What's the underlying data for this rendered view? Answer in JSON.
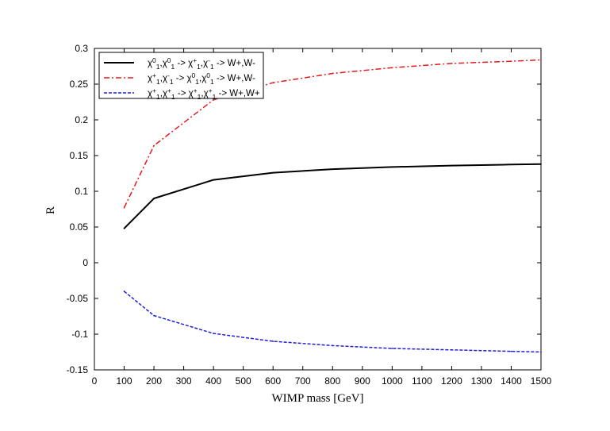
{
  "chart_data": {
    "type": "line",
    "title": "",
    "xlabel": "WIMP mass [GeV]",
    "ylabel": "R",
    "xlim": [
      0,
      1500
    ],
    "ylim": [
      -0.15,
      0.3
    ],
    "xticks": [
      "0",
      "100",
      "200",
      "300",
      "400",
      "500",
      "600",
      "700",
      "800",
      "900",
      "1000",
      "1100",
      "1200",
      "1300",
      "1400",
      "1500"
    ],
    "yticks": [
      "-0.15",
      "-0.1",
      "-0.05",
      "0",
      "0.05",
      "0.1",
      "0.15",
      "0.2",
      "0.25",
      "0.3"
    ],
    "grid": false,
    "legend_position": "top-left",
    "series": [
      {
        "name": "χ0₁,χ0₁ -> χ+₁,χ-₁ -> W+,W-",
        "legend_parts": [
          {
            "t": "χ"
          },
          {
            "t": "0",
            "sup": true
          },
          {
            "t": "1",
            "sub": true
          },
          {
            "t": ",χ"
          },
          {
            "t": "0",
            "sup": true
          },
          {
            "t": "1",
            "sub": true
          },
          {
            "t": " -> χ"
          },
          {
            "t": "+",
            "sup": true
          },
          {
            "t": "1",
            "sub": true
          },
          {
            "t": ",χ"
          },
          {
            "t": "-",
            "sup": true
          },
          {
            "t": "1",
            "sub": true
          },
          {
            "t": " -> W+,W-"
          }
        ],
        "color": "#000000",
        "dash": "solid",
        "x": [
          100,
          200,
          400,
          600,
          800,
          1000,
          1200,
          1400,
          1500
        ],
        "y": [
          0.048,
          0.09,
          0.116,
          0.126,
          0.131,
          0.134,
          0.136,
          0.1375,
          0.138
        ]
      },
      {
        "name": "χ+₁,χ-₁ -> χ0₁,χ0₁ -> W+,W-",
        "legend_parts": [
          {
            "t": "χ"
          },
          {
            "t": "+",
            "sup": true
          },
          {
            "t": "1",
            "sub": true
          },
          {
            "t": ",χ"
          },
          {
            "t": "-",
            "sup": true
          },
          {
            "t": "1",
            "sub": true
          },
          {
            "t": " -> χ"
          },
          {
            "t": "0",
            "sup": true
          },
          {
            "t": "1",
            "sub": true
          },
          {
            "t": ",χ"
          },
          {
            "t": "0",
            "sup": true
          },
          {
            "t": "1",
            "sub": true
          },
          {
            "t": " -> W+,W-"
          }
        ],
        "color": "#e41a1c",
        "dash": "dashdot",
        "x": [
          100,
          200,
          400,
          600,
          800,
          1000,
          1200,
          1400,
          1500
        ],
        "y": [
          0.077,
          0.164,
          0.228,
          0.252,
          0.265,
          0.273,
          0.279,
          0.282,
          0.284
        ]
      },
      {
        "name": "χ+₁,χ+₁ -> χ+₁,χ+₁ -> W+,W+",
        "legend_parts": [
          {
            "t": "χ"
          },
          {
            "t": "+",
            "sup": true
          },
          {
            "t": "1",
            "sub": true
          },
          {
            "t": ",χ"
          },
          {
            "t": "+",
            "sup": true
          },
          {
            "t": "1",
            "sub": true
          },
          {
            "t": " -> χ"
          },
          {
            "t": "+",
            "sup": true
          },
          {
            "t": "1",
            "sub": true
          },
          {
            "t": ",χ"
          },
          {
            "t": "+",
            "sup": true
          },
          {
            "t": "1",
            "sub": true
          },
          {
            "t": " -> W+,W+"
          }
        ],
        "color": "#1f1fd6",
        "dash": "dashed",
        "x": [
          100,
          200,
          400,
          600,
          800,
          1000,
          1200,
          1400,
          1500
        ],
        "y": [
          -0.04,
          -0.074,
          -0.099,
          -0.11,
          -0.116,
          -0.12,
          -0.122,
          -0.124,
          -0.125
        ]
      }
    ]
  }
}
